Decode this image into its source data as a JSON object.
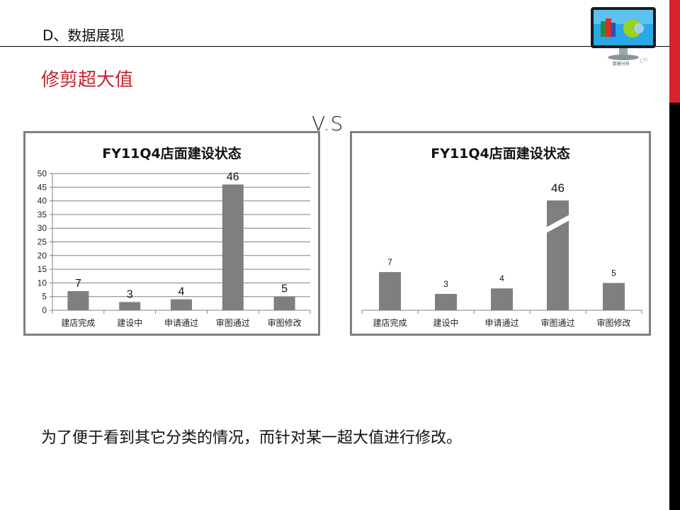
{
  "header": {
    "title": "D、数据展现"
  },
  "subtitle": "修剪超大值",
  "vs_label": "V.S",
  "logo": {
    "caption": "数据分析",
    "url_fragment": "cn"
  },
  "footer_text": "为了便于看到其它分类的情况，而针对某一超大值进行修改。",
  "colors": {
    "bar": "#7f7f7f",
    "accent_red": "#d8232f",
    "subtitle_red": "#c8202e",
    "frame": "#7f7f7f"
  },
  "chart_data": [
    {
      "type": "bar",
      "title": "FY11Q4店面建设状态",
      "categories": [
        "建店完成",
        "建设中",
        "申请通过",
        "审图通过",
        "审图修改"
      ],
      "values": [
        7,
        3,
        4,
        46,
        5
      ],
      "xlabel": "",
      "ylabel": "",
      "ylim": [
        0,
        50
      ],
      "yticks": [
        0,
        5,
        10,
        15,
        20,
        25,
        30,
        35,
        40,
        45,
        50
      ],
      "grid": true,
      "data_labels": true
    },
    {
      "type": "bar",
      "title": "FY11Q4店面建设状态",
      "categories": [
        "建店完成",
        "建设中",
        "申请通过",
        "审图通过",
        "审图修改"
      ],
      "values": [
        7,
        3,
        4,
        46,
        5
      ],
      "xlabel": "",
      "ylabel": "",
      "grid": false,
      "data_labels": true,
      "annotations": [
        "审图通过 bar truncated with a diagonal break mark"
      ]
    }
  ]
}
